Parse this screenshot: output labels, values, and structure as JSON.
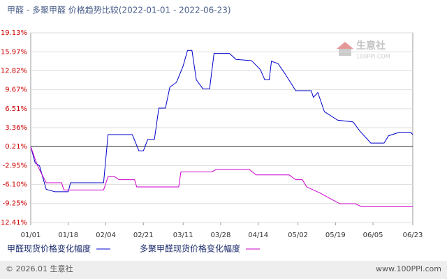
{
  "chart_data": {
    "type": "line",
    "title": "甲醛 - 多聚甲醛 价格趋势比较(2022-01-01 - 2022-06-23)",
    "watermark": {
      "name": "生意社",
      "site": "100PPI.COM"
    },
    "footer": {
      "left": "© 2026.01 生意社",
      "right": "www.100PPI.com"
    },
    "xlim": [
      "01/01",
      "06/23"
    ],
    "xticks": [
      "01/01",
      "01/18",
      "02/04",
      "02/21",
      "03/11",
      "03/28",
      "04/14",
      "05/02",
      "05/19",
      "06/05",
      "06/23"
    ],
    "ylim": [
      -12.41,
      19.13
    ],
    "yticks": [
      {
        "value": -12.41,
        "label": "-12.41%"
      },
      {
        "value": -9.25,
        "label": "-9.25%"
      },
      {
        "value": -6.1,
        "label": "-6.10%"
      },
      {
        "value": -2.95,
        "label": "-2.95%"
      },
      {
        "value": 0.21,
        "label": "0.21%"
      },
      {
        "value": 3.36,
        "label": "3.36%"
      },
      {
        "value": 6.51,
        "label": "6.51%"
      },
      {
        "value": 9.67,
        "label": "9.67%"
      },
      {
        "value": 12.82,
        "label": "12.82%"
      },
      {
        "value": 15.97,
        "label": "15.97%"
      },
      {
        "value": 19.13,
        "label": "19.13%"
      }
    ],
    "baseline": 0.21,
    "grid": true,
    "series": [
      {
        "name": "甲醛现货价格变化幅度",
        "color": "#0000cc",
        "x": [
          "01/01",
          "01/03",
          "01/05",
          "01/08",
          "01/12",
          "01/18",
          "01/19",
          "02/03",
          "02/05",
          "02/16",
          "02/19",
          "02/21",
          "02/23",
          "02/26",
          "02/28",
          "03/03",
          "03/05",
          "03/08",
          "03/11",
          "03/13",
          "03/15",
          "03/17",
          "03/20",
          "03/23",
          "03/25",
          "04/01",
          "04/04",
          "04/11",
          "04/15",
          "04/17",
          "04/19",
          "04/20",
          "04/23",
          "04/26",
          "05/01",
          "05/08",
          "05/09",
          "05/11",
          "05/14",
          "05/20",
          "05/27",
          "05/30",
          "06/04",
          "06/10",
          "06/12",
          "06/17",
          "06/22",
          "06/23"
        ],
        "values": [
          0.21,
          -2.5,
          -3.0,
          -6.9,
          -7.3,
          -7.3,
          -5.8,
          -5.8,
          2.2,
          2.2,
          -0.5,
          -0.5,
          1.4,
          1.4,
          6.6,
          6.6,
          10.1,
          10.9,
          13.6,
          16.2,
          16.2,
          11.3,
          9.8,
          9.8,
          15.7,
          15.7,
          14.7,
          14.5,
          13.0,
          11.3,
          11.3,
          14.4,
          14.0,
          12.4,
          9.5,
          9.5,
          8.4,
          9.2,
          6.0,
          4.6,
          4.3,
          2.8,
          0.8,
          0.8,
          2.0,
          2.6,
          2.6,
          2.2
        ]
      },
      {
        "name": "多聚甲醛现货价格变化幅度",
        "color": "#cc00cc",
        "x": [
          "01/01",
          "01/04",
          "01/08",
          "01/15",
          "01/16",
          "02/03",
          "02/05",
          "02/08",
          "02/10",
          "02/17",
          "02/18",
          "03/09",
          "03/10",
          "03/24",
          "03/26",
          "04/10",
          "04/13",
          "04/28",
          "05/01",
          "05/04",
          "05/06",
          "05/12",
          "05/17",
          "05/21",
          "05/28",
          "05/31",
          "06/23"
        ],
        "values": [
          0.21,
          -2.9,
          -5.8,
          -5.8,
          -7.0,
          -7.0,
          -4.8,
          -4.8,
          -5.3,
          -5.3,
          -6.5,
          -6.5,
          -4.0,
          -4.0,
          -3.6,
          -3.6,
          -4.5,
          -4.5,
          -5.3,
          -5.3,
          -6.5,
          -7.5,
          -8.5,
          -9.3,
          -9.3,
          -9.8,
          -9.8
        ]
      }
    ]
  }
}
